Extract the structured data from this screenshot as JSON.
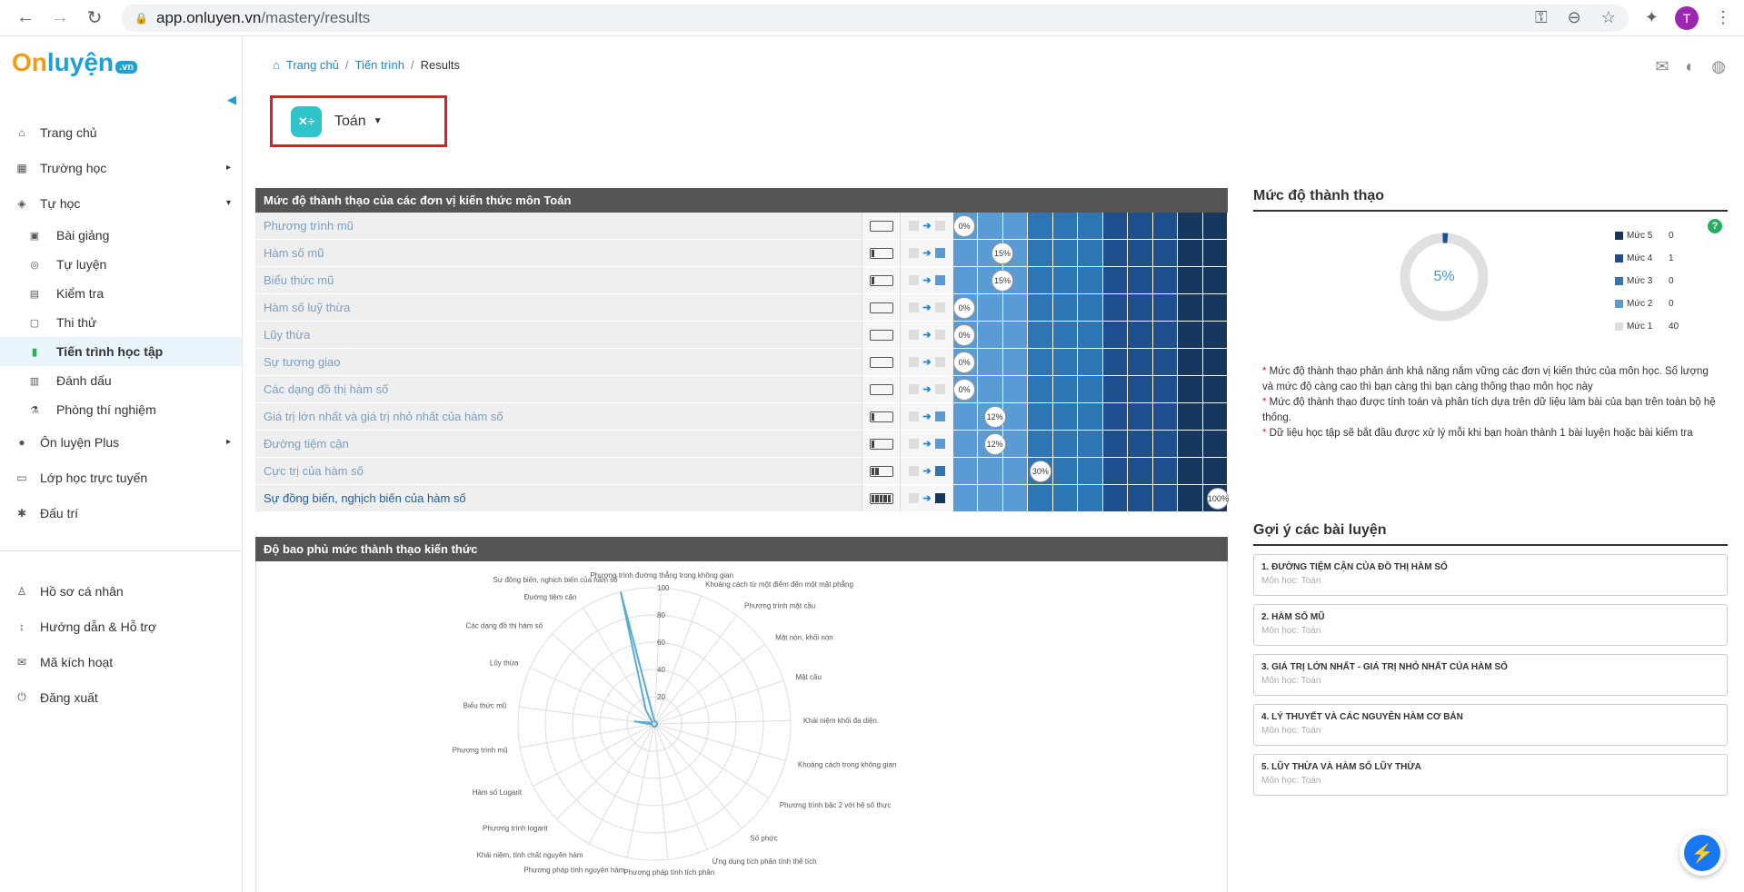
{
  "browser": {
    "url_host": "app.onluyen.vn",
    "url_path": "/mastery/results",
    "avatar_letter": "T"
  },
  "logo": {
    "part1": "On",
    "part2": "luyện",
    "badge": ".vn"
  },
  "sidebar": {
    "items": [
      {
        "label": "Trang chủ",
        "icon": "home-icon"
      },
      {
        "label": "Trường học",
        "icon": "school-icon",
        "caret": "▸"
      },
      {
        "label": "Tự học",
        "icon": "graduation-icon",
        "caret": "▾"
      }
    ],
    "sub_items": [
      {
        "label": "Bài giảng",
        "icon": "video-icon"
      },
      {
        "label": "Tự luyện",
        "icon": "target-icon"
      },
      {
        "label": "Kiểm tra",
        "icon": "calendar-icon"
      },
      {
        "label": "Thi thử",
        "icon": "clipboard-icon"
      },
      {
        "label": "Tiến trình học tập",
        "icon": "bar-chart-icon",
        "active": true
      },
      {
        "label": "Đánh dấu",
        "icon": "bookmark-icon"
      },
      {
        "label": "Phòng thí nghiệm",
        "icon": "lab-icon"
      }
    ],
    "items2": [
      {
        "label": "Ôn luyện Plus",
        "icon": "plus-circle-icon",
        "caret": "▸"
      },
      {
        "label": "Lớp học trực tuyến",
        "icon": "monitor-icon"
      },
      {
        "label": "Đấu trí",
        "icon": "bug-icon"
      }
    ],
    "items3": [
      {
        "label": "Hồ sơ cá nhân",
        "icon": "user-icon"
      },
      {
        "label": "Hướng dẫn & Hỗ trợ",
        "icon": "thermometer-icon"
      },
      {
        "label": "Mã kích hoạt",
        "icon": "envelope-icon"
      },
      {
        "label": "Đăng xuất",
        "icon": "power-icon"
      }
    ]
  },
  "breadcrumb": {
    "home": "Trang chủ",
    "progress": "Tiến trình",
    "current": "Results",
    "sep": "/"
  },
  "subject": {
    "name": "Toán",
    "icon_text": "✕÷"
  },
  "mastery": {
    "title": "Mức độ thành thạo của các đơn vị kiến thức môn Toán",
    "scale_colors": [
      "#5b9bd5",
      "#5b9bd5",
      "#5b9bd5",
      "#2e75b6",
      "#2e75b6",
      "#2e75b6",
      "#1f4e8c",
      "#1f4e8c",
      "#1f4e8c",
      "#16365e",
      "#16365e"
    ],
    "rows": [
      {
        "name": "Phương trình mũ",
        "pct": 0,
        "pct_label": "0%",
        "battery": 0,
        "target_color": "#dddddd"
      },
      {
        "name": "Hàm số mũ",
        "pct": 15,
        "pct_label": "15%",
        "battery": 1,
        "target_color": "#5b9bd5"
      },
      {
        "name": "Biểu thức mũ",
        "pct": 15,
        "pct_label": "15%",
        "battery": 1,
        "target_color": "#5b9bd5"
      },
      {
        "name": "Hàm số luỹ thừa",
        "pct": 0,
        "pct_label": "0%",
        "battery": 0,
        "target_color": "#dddddd"
      },
      {
        "name": "Lũy thừa",
        "pct": 0,
        "pct_label": "0%",
        "battery": 0,
        "target_color": "#dddddd"
      },
      {
        "name": "Sự tương giao",
        "pct": 0,
        "pct_label": "0%",
        "battery": 0,
        "target_color": "#dddddd"
      },
      {
        "name": "Các dạng đồ thị hàm số",
        "pct": 0,
        "pct_label": "0%",
        "battery": 0,
        "target_color": "#dddddd"
      },
      {
        "name": "Giá trị lớn nhất và giá trị nhỏ nhất của hàm số",
        "pct": 12,
        "pct_label": "12%",
        "battery": 1,
        "target_color": "#5b9bd5"
      },
      {
        "name": "Đường tiệm cận",
        "pct": 12,
        "pct_label": "12%",
        "battery": 1,
        "target_color": "#5b9bd5"
      },
      {
        "name": "Cực trị của hàm số",
        "pct": 30,
        "pct_label": "30%",
        "battery": 2,
        "target_color": "#2e75b6"
      },
      {
        "name": "Sự đồng biến, nghịch biến của hàm số",
        "pct": 100,
        "pct_label": "100%",
        "battery": 5,
        "target_color": "#16365e"
      }
    ]
  },
  "radar": {
    "title": "Độ bao phủ mức thành thạo kiến thức",
    "ticks": [
      "20",
      "40",
      "60",
      "80",
      "100"
    ],
    "labels": [
      "Phương trình đường thẳng trong không gian",
      "Khoảng cách từ một điểm đến một mặt phẳng",
      "Phương trình mặt cầu",
      "Mặt nón, khối nón",
      "Mặt cầu",
      "Khái niệm khối đa diện.",
      "Khoảng cách trong không gian",
      "Phương trình bậc 2 với hệ số thực",
      "Số phức",
      "Ứng dụng tích phân tính thể tích",
      "Phương pháp tính tích phân",
      "Phương pháp tính nguyên hàm",
      "Khái niệm, tính chất nguyên hàm",
      "Phương trình logarit",
      "Hàm số Logarit",
      "Phương trình mũ",
      "Biểu thức mũ",
      "Lũy thừa",
      "Các dạng đồ thị hàm số",
      "Đường tiệm cận",
      "Sự đồng biến, nghịch biến của hàm số"
    ],
    "values": [
      0,
      0,
      0,
      0,
      0,
      0,
      0,
      0,
      0,
      0,
      0,
      0,
      0,
      0,
      0,
      0,
      15,
      0,
      0,
      12,
      100
    ]
  },
  "level_panel": {
    "title": "Mức độ thành thạo",
    "percent": "5%",
    "percent_value": 5,
    "legend": [
      {
        "label": "Mức 5",
        "count": "0",
        "color": "#16365e"
      },
      {
        "label": "Mức 4",
        "count": "1",
        "color": "#1f4e8c"
      },
      {
        "label": "Mức 3",
        "count": "0",
        "color": "#2e75b6"
      },
      {
        "label": "Mức 2",
        "count": "0",
        "color": "#5b9bd5"
      },
      {
        "label": "Mức 1",
        "count": "40",
        "color": "#dddddd"
      }
    ],
    "notes": [
      "Mức độ thành thạo phản ánh khả năng nắm vững các đơn vị kiến thức của môn học. Số lượng và mức độ càng cao thì bạn càng thì bạn càng thông thạo môn học này",
      "Mức độ thành thạo được tính toán và phân tích dựa trên dữ liệu làm bài của bạn trên toàn bộ hệ thống.",
      "Dữ liệu học tập sẽ bắt đầu được xử lý mỗi khi bạn hoàn thành 1 bài luyện hoặc bài kiểm tra"
    ],
    "help": "?"
  },
  "suggestions": {
    "title": "Gợi ý các bài luyện",
    "items": [
      {
        "title": "1. ĐƯỜNG TIỆM CẬN CỦA ĐỒ THỊ HÀM SỐ",
        "subject": "Môn học: Toán"
      },
      {
        "title": "2. HÀM SỐ MŨ",
        "subject": "Môn học: Toán"
      },
      {
        "title": "3. GIÁ TRỊ LỚN NHẤT - GIÁ TRỊ NHỎ NHẤT CỦA HÀM SỐ",
        "subject": "Môn học: Toán"
      },
      {
        "title": "4. LÝ THUYẾT VÀ CÁC NGUYÊN HÀM CƠ BẢN",
        "subject": "Môn học: Toán"
      },
      {
        "title": "5. LŨY THỪA VÀ HÀM SỐ LŨY THỪA",
        "subject": "Môn học: Toán"
      }
    ]
  },
  "chart_data": {
    "type": "radar",
    "title": "Độ bao phủ mức thành thạo kiến thức",
    "categories": [
      "Phương trình đường thẳng trong không gian",
      "Khoảng cách từ một điểm đến một mặt phẳng",
      "Phương trình mặt cầu",
      "Mặt nón, khối nón",
      "Mặt cầu",
      "Khái niệm khối đa diện.",
      "Khoảng cách trong không gian",
      "Phương trình bậc 2 với hệ số thực",
      "Số phức",
      "Ứng dụng tích phân tính thể tích",
      "Phương pháp tính tích phân",
      "Phương pháp tính nguyên hàm",
      "Khái niệm, tính chất nguyên hàm",
      "Phương trình logarit",
      "Hàm số Logarit",
      "Phương trình mũ",
      "Biểu thức mũ",
      "Lũy thừa",
      "Các dạng đồ thị hàm số",
      "Đường tiệm cận",
      "Sự đồng biến, nghịch biến của hàm số"
    ],
    "values": [
      0,
      0,
      0,
      0,
      0,
      0,
      0,
      0,
      0,
      0,
      0,
      0,
      0,
      0,
      0,
      0,
      15,
      0,
      0,
      12,
      100
    ],
    "ylim": [
      0,
      100
    ]
  }
}
